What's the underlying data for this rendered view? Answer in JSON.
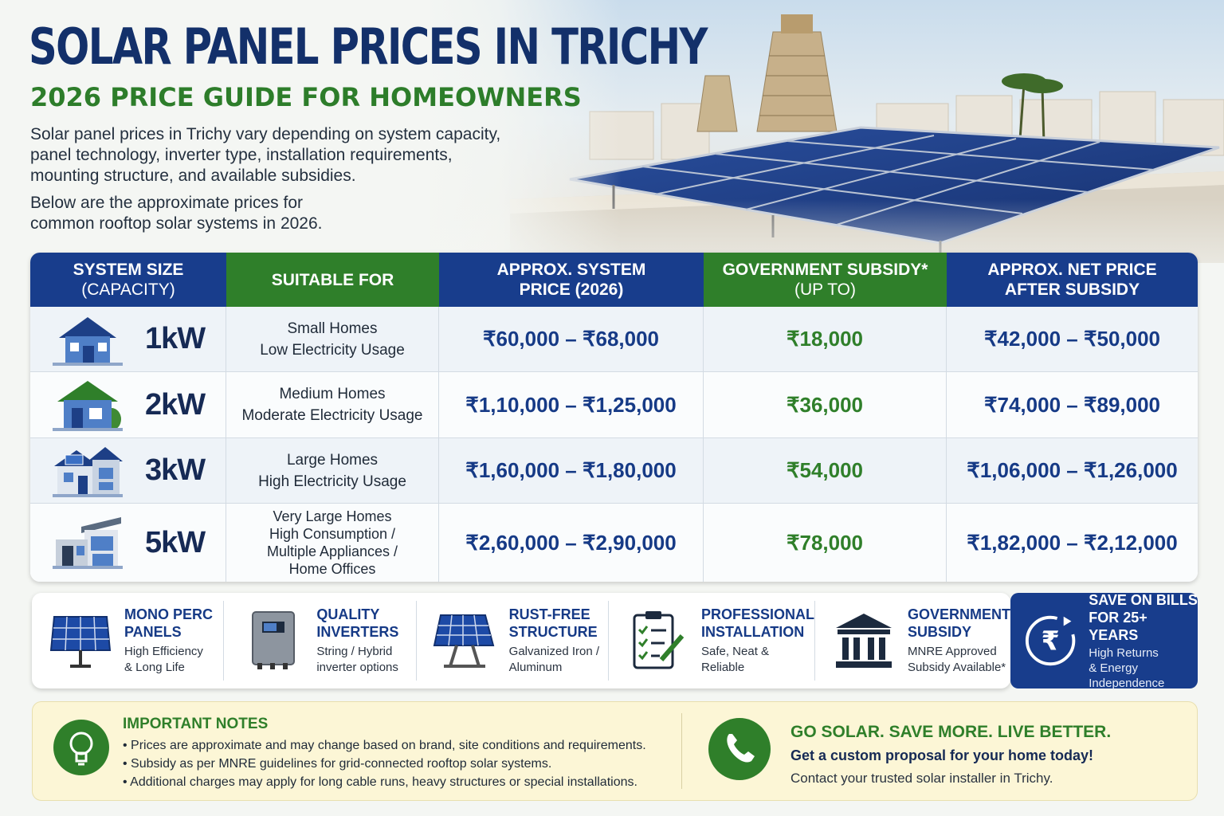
{
  "header": {
    "title": "SOLAR PANEL PRICES IN TRICHY",
    "subtitle": "2026 PRICE GUIDE FOR HOMEOWNERS",
    "intro_lines": [
      "Solar panel prices in Trichy vary depending on system capacity,",
      "panel technology, inverter type, installation requirements,",
      "mounting structure, and available subsidies.",
      "Below are the approximate prices for",
      "common rooftop solar systems in 2026."
    ]
  },
  "colors": {
    "navy": "#183d8c",
    "green": "#2f7f2a",
    "title": "#13306a",
    "notes_bg": "#fcf6d6"
  },
  "table": {
    "headers": [
      {
        "line1": "SYSTEM SIZE",
        "line2": "(CAPACITY)",
        "color": "navy"
      },
      {
        "line1": "SUITABLE FOR",
        "line2": "",
        "color": "green"
      },
      {
        "line1": "APPROX. SYSTEM",
        "line2": "PRICE (2026)",
        "color": "navy"
      },
      {
        "line1": "GOVERNMENT SUBSIDY*",
        "line2": "(UP TO)",
        "color": "green"
      },
      {
        "line1": "APPROX. NET PRICE",
        "line2": "AFTER SUBSIDY",
        "color": "navy"
      }
    ],
    "rows": [
      {
        "size": "1kW",
        "icon": "small-house-icon",
        "suitable": [
          "Small Homes",
          "Low Electricity Usage"
        ],
        "price": "₹60,000 – ₹68,000",
        "subsidy": "₹18,000",
        "net": "₹42,000 – ₹50,000"
      },
      {
        "size": "2kW",
        "icon": "medium-house-icon",
        "suitable": [
          "Medium Homes",
          "Moderate Electricity Usage"
        ],
        "price": "₹1,10,000 – ₹1,25,000",
        "subsidy": "₹36,000",
        "net": "₹74,000 – ₹89,000"
      },
      {
        "size": "3kW",
        "icon": "large-house-icon",
        "suitable": [
          "Large Homes",
          "High Electricity Usage"
        ],
        "price": "₹1,60,000 – ₹1,80,000",
        "subsidy": "₹54,000",
        "net": "₹1,06,000 – ₹1,26,000"
      },
      {
        "size": "5kW",
        "icon": "modern-house-icon",
        "suitable": [
          "Very Large Homes",
          "High Consumption /",
          "Multiple Appliances /",
          "Home Offices"
        ],
        "price": "₹2,60,000 – ₹2,90,000",
        "subsidy": "₹78,000",
        "net": "₹1,82,000 – ₹2,12,000"
      }
    ]
  },
  "features": [
    {
      "icon": "solar-panel-icon",
      "title": [
        "MONO PERC",
        "PANELS"
      ],
      "desc": [
        "High Efficiency",
        "& Long Life"
      ]
    },
    {
      "icon": "inverter-icon",
      "title": [
        "QUALITY",
        "INVERTERS"
      ],
      "desc": [
        "String / Hybrid",
        "inverter options"
      ]
    },
    {
      "icon": "mounting-structure-icon",
      "title": [
        "RUST-FREE",
        "STRUCTURE"
      ],
      "desc": [
        "Galvanized Iron /",
        "Aluminum"
      ]
    },
    {
      "icon": "clipboard-checklist-icon",
      "title": [
        "PROFESSIONAL",
        "INSTALLATION"
      ],
      "desc": [
        "Safe, Neat &",
        "Reliable"
      ]
    },
    {
      "icon": "government-building-icon",
      "title": [
        "GOVERNMENT",
        "SUBSIDY"
      ],
      "desc": [
        "MNRE Approved",
        "Subsidy Available*"
      ]
    }
  ],
  "save": {
    "icon": "rupee-cycle-icon",
    "title": [
      "SAVE ON BILLS",
      "FOR 25+ YEARS"
    ],
    "desc": [
      "High Returns",
      "& Energy",
      "Independence"
    ]
  },
  "notes": {
    "icon": "lightbulb-icon",
    "title": "IMPORTANT NOTES",
    "items": [
      "Prices are approximate and may change based on brand, site conditions and requirements.",
      "Subsidy as per MNRE guidelines for grid-connected rooftop solar systems.",
      "Additional charges may apply for long cable runs, heavy structures or special installations."
    ]
  },
  "cta": {
    "icon": "phone-icon",
    "title": "GO SOLAR. SAVE MORE. LIVE BETTER.",
    "line": "Get a custom proposal for your home today!",
    "sub": "Contact your trusted solar installer in Trichy."
  }
}
